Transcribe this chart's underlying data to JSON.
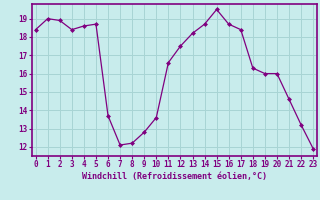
{
  "hours": [
    0,
    1,
    2,
    3,
    4,
    5,
    6,
    7,
    8,
    9,
    10,
    11,
    12,
    13,
    14,
    15,
    16,
    17,
    18,
    19,
    20,
    21,
    22,
    23
  ],
  "values": [
    18.4,
    19.0,
    18.9,
    18.4,
    18.6,
    18.7,
    13.7,
    12.1,
    12.2,
    12.8,
    13.6,
    16.6,
    17.5,
    18.2,
    18.7,
    19.5,
    18.7,
    18.4,
    16.3,
    16.0,
    16.0,
    14.6,
    13.2,
    11.9
  ],
  "line_color": "#800080",
  "marker": "D",
  "marker_size": 2.0,
  "bg_color": "#c8ecec",
  "grid_color": "#a8d4d4",
  "xlabel": "Windchill (Refroidissement éolien,°C)",
  "ylim": [
    11.5,
    19.8
  ],
  "yticks": [
    12,
    13,
    14,
    15,
    16,
    17,
    18,
    19
  ],
  "tick_fontsize": 5.5,
  "xlabel_fontsize": 6.0
}
